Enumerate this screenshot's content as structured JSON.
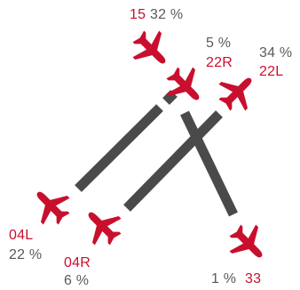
{
  "colors": {
    "runway": "#4a4a4a",
    "plane": "#c8102e",
    "runway_label": "#c8102e",
    "share_text": "#5a5a5a",
    "background": "#ffffff"
  },
  "runways": [
    {
      "id": "04L-22R",
      "ends": [
        "04L",
        "22R"
      ]
    },
    {
      "id": "04R-22L",
      "ends": [
        "04R",
        "22L"
      ]
    },
    {
      "id": "15-33",
      "ends": [
        "15",
        "33"
      ]
    }
  ],
  "labels": {
    "r15": {
      "runway": "15",
      "share": "32 %"
    },
    "r22R": {
      "runway": "22R",
      "share": "5 %"
    },
    "r22L": {
      "runway": "22L",
      "share": "34 %"
    },
    "r04L": {
      "runway": "04L",
      "share": "22 %"
    },
    "r04R": {
      "runway": "04R",
      "share": "6 %"
    },
    "r33": {
      "runway": "33",
      "share": "1 %"
    }
  },
  "icons": [
    "airplane-icon-15",
    "airplane-icon-22R",
    "airplane-icon-22L",
    "airplane-icon-04L",
    "airplane-icon-04R",
    "airplane-icon-33"
  ]
}
